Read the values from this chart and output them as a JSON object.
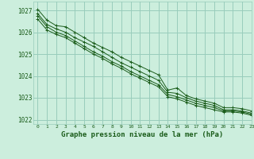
{
  "bg_color": "#cceedd",
  "grid_color": "#99ccbb",
  "line_color": "#1a5c1a",
  "xlabel": "Graphe pression niveau de la mer (hPa)",
  "xlim": [
    -0.5,
    23
  ],
  "ylim": [
    1021.8,
    1027.4
  ],
  "yticks": [
    1022,
    1023,
    1024,
    1025,
    1026,
    1027
  ],
  "xticks": [
    0,
    1,
    2,
    3,
    4,
    5,
    6,
    7,
    8,
    9,
    10,
    11,
    12,
    13,
    14,
    15,
    16,
    17,
    18,
    19,
    20,
    21,
    22,
    23
  ],
  "series": [
    [
      1027.05,
      1026.55,
      1026.3,
      1026.25,
      1026.0,
      1025.75,
      1025.5,
      1025.3,
      1025.1,
      1024.85,
      1024.65,
      1024.45,
      1024.25,
      1024.05,
      1023.35,
      1023.45,
      1023.1,
      1022.95,
      1022.85,
      1022.75,
      1022.55,
      1022.55,
      1022.5,
      1022.4
    ],
    [
      1026.85,
      1026.35,
      1026.15,
      1026.0,
      1025.75,
      1025.55,
      1025.35,
      1025.1,
      1024.85,
      1024.6,
      1024.4,
      1024.2,
      1024.0,
      1023.8,
      1023.25,
      1023.2,
      1023.0,
      1022.85,
      1022.75,
      1022.65,
      1022.45,
      1022.45,
      1022.4,
      1022.3
    ],
    [
      1026.75,
      1026.25,
      1026.0,
      1025.85,
      1025.6,
      1025.35,
      1025.1,
      1024.9,
      1024.65,
      1024.45,
      1024.2,
      1024.0,
      1023.8,
      1023.6,
      1023.15,
      1023.05,
      1022.9,
      1022.75,
      1022.65,
      1022.55,
      1022.4,
      1022.4,
      1022.35,
      1022.25
    ],
    [
      1026.6,
      1026.1,
      1025.9,
      1025.75,
      1025.5,
      1025.25,
      1025.0,
      1024.8,
      1024.55,
      1024.35,
      1024.1,
      1023.9,
      1023.7,
      1023.5,
      1023.05,
      1022.95,
      1022.8,
      1022.65,
      1022.55,
      1022.45,
      1022.35,
      1022.35,
      1022.3,
      1022.2
    ]
  ]
}
